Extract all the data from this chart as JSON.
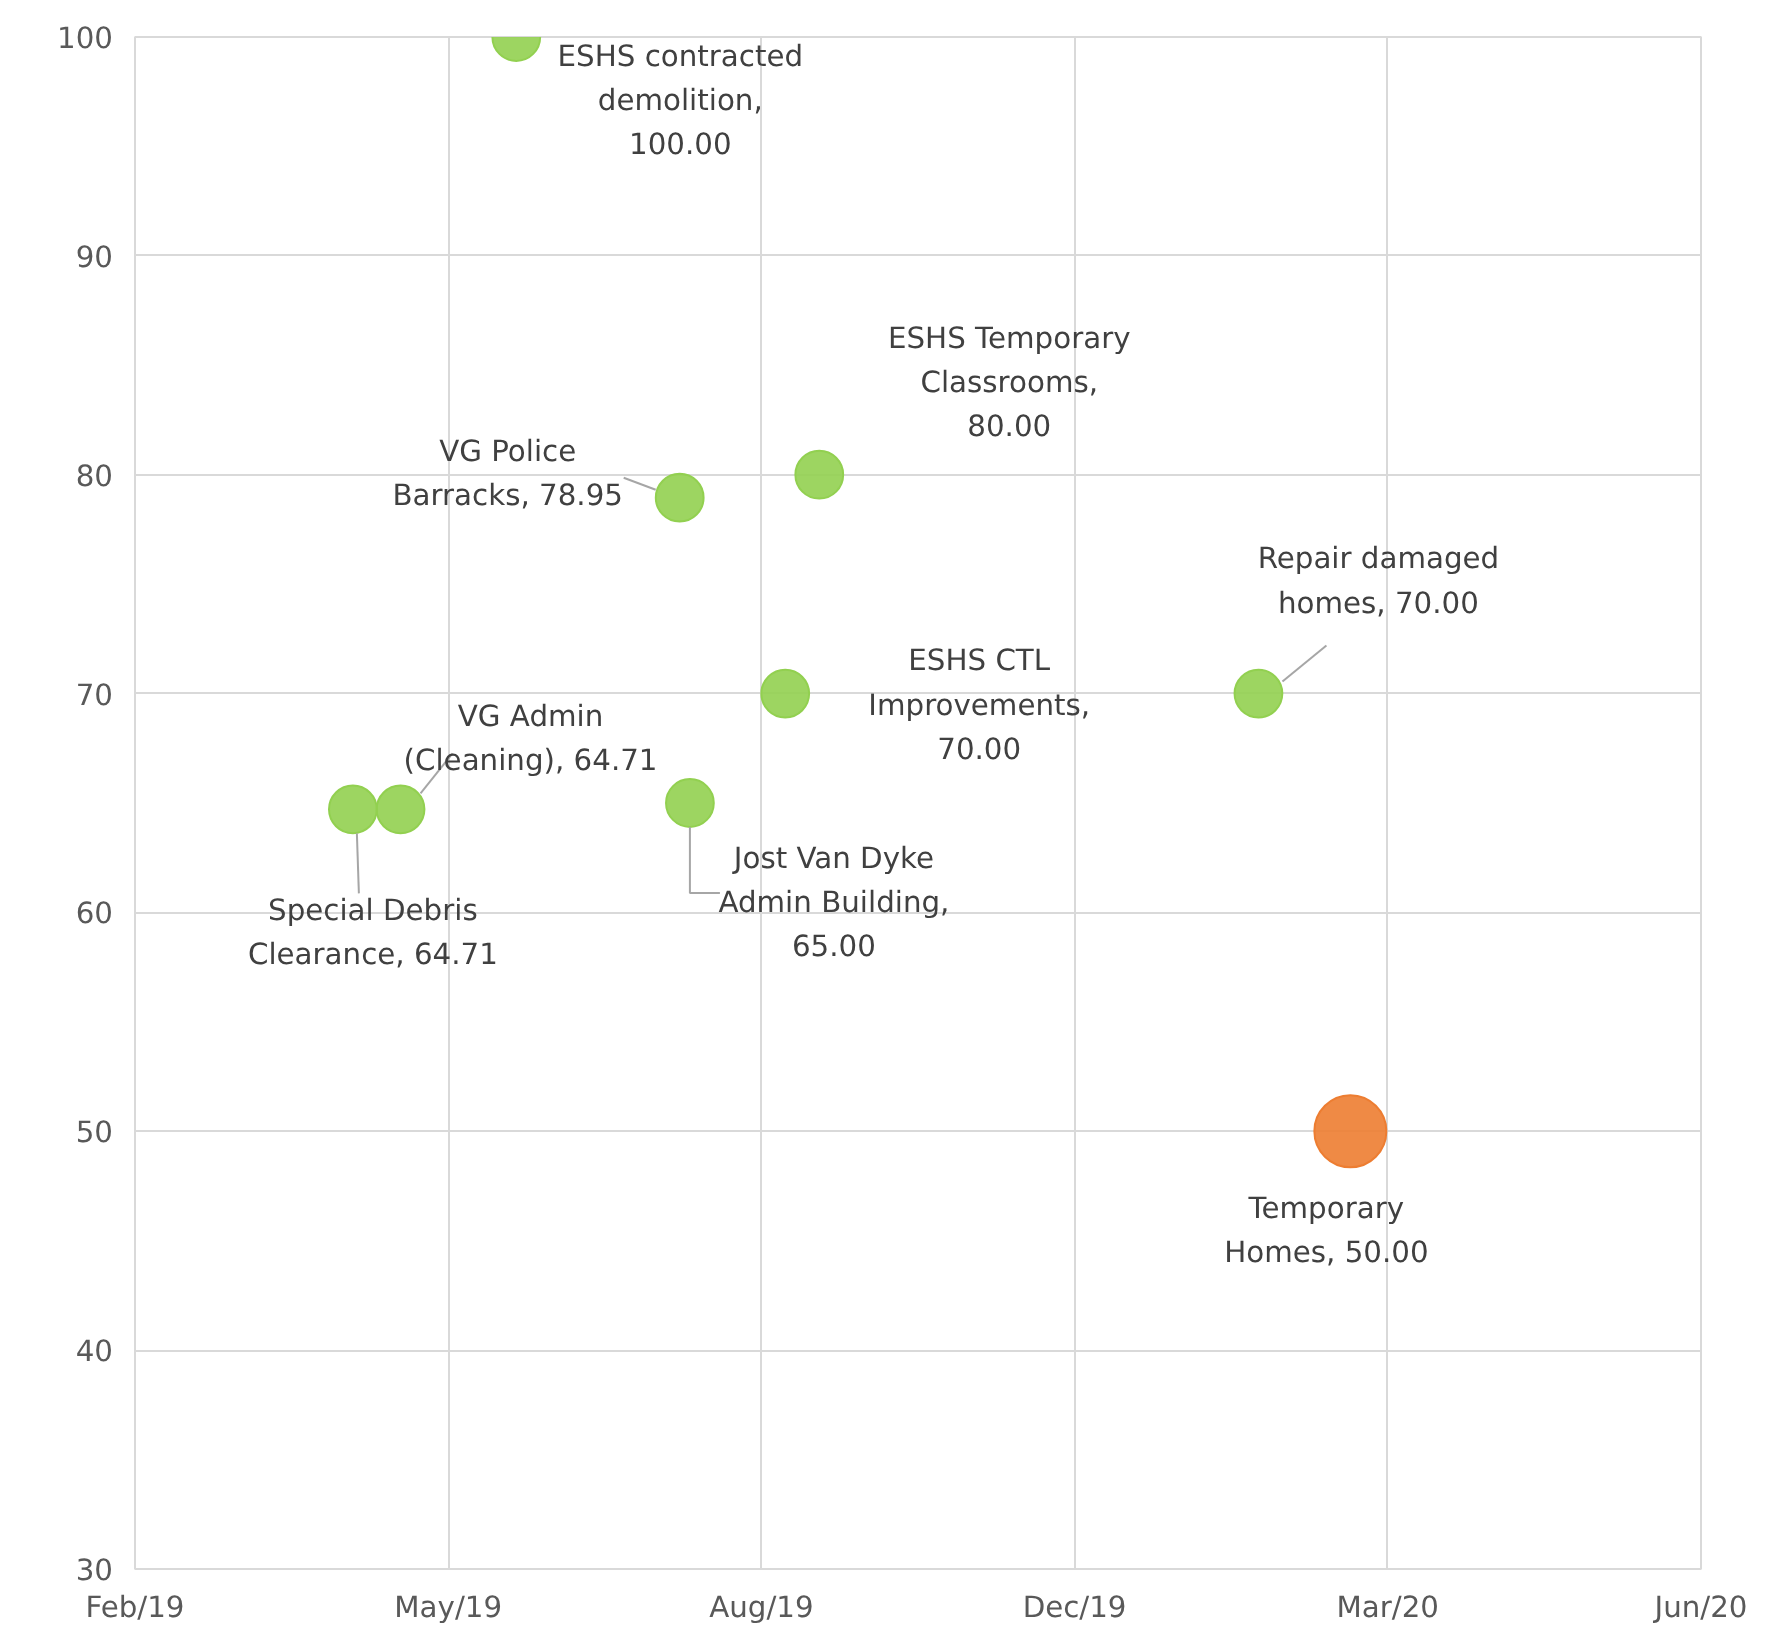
{
  "chart_data": {
    "type": "bubble",
    "x": [
      "2019-06-20",
      "2019-08-07",
      "2019-09-17",
      "2019-05-17",
      "2019-05-03",
      "2019-09-07",
      "2019-08-10",
      "2020-01-24",
      "2020-02-20"
    ],
    "values": [
      100,
      78.95,
      80,
      64.71,
      64.71,
      70,
      65,
      70,
      50
    ],
    "sizes": [
      0.44,
      0.44,
      0.44,
      0.44,
      0.44,
      0.44,
      0.44,
      0.44,
      1
    ],
    "colors": [
      "#92d050",
      "#92d050",
      "#92d050",
      "#92d050",
      "#92d050",
      "#92d050",
      "#92d050",
      "#92d050",
      "#ed7d31"
    ],
    "annotations": [
      {
        "text": "ESHS contracted\ndemolition,\n100.00",
        "x": "2019-06-20",
        "y": 100
      },
      {
        "text": "VG Police\nBarracks, 78.95",
        "x": "2019-08-07",
        "y": 78.95
      },
      {
        "text": "ESHS Temporary\nClassrooms,\n80.00",
        "x": "2019-09-17",
        "y": 80
      },
      {
        "text": "VG Admin\n(Cleaning), 64.71",
        "x": "2019-05-17",
        "y": 64.71
      },
      {
        "text": "Special Debris\nClearance, 64.71",
        "x": "2019-05-03",
        "y": 64.71
      },
      {
        "text": "ESHS CTL\nImprovements,\n70.00",
        "x": "2019-09-07",
        "y": 70
      },
      {
        "text": "Jost Van Dyke\nAdmin Building,\n65.00",
        "x": "2019-08-10",
        "y": 65
      },
      {
        "text": "Repair damaged\nhomes, 70.00",
        "x": "2020-01-24",
        "y": 70
      },
      {
        "text": "Temporary\nHomes, 50.00",
        "x": "2020-02-20",
        "y": 50
      }
    ],
    "xlim": [
      "2019-02-28",
      "2020-06-02"
    ],
    "xticks": [
      {
        "value": "2019-02-28",
        "label": "Feb/19"
      },
      {
        "value": "2019-05-31",
        "label": "May/19"
      },
      {
        "value": "2019-08-31",
        "label": "Aug/19"
      },
      {
        "value": "2019-12-01",
        "label": "Dec/19"
      },
      {
        "value": "2020-03-02",
        "label": "Mar/20"
      },
      {
        "value": "2020-06-02",
        "label": "Jun/20"
      }
    ],
    "ylim": [
      30,
      100
    ],
    "yticks": [
      30,
      40,
      50,
      60,
      70,
      80,
      90,
      100
    ],
    "grid": true
  }
}
